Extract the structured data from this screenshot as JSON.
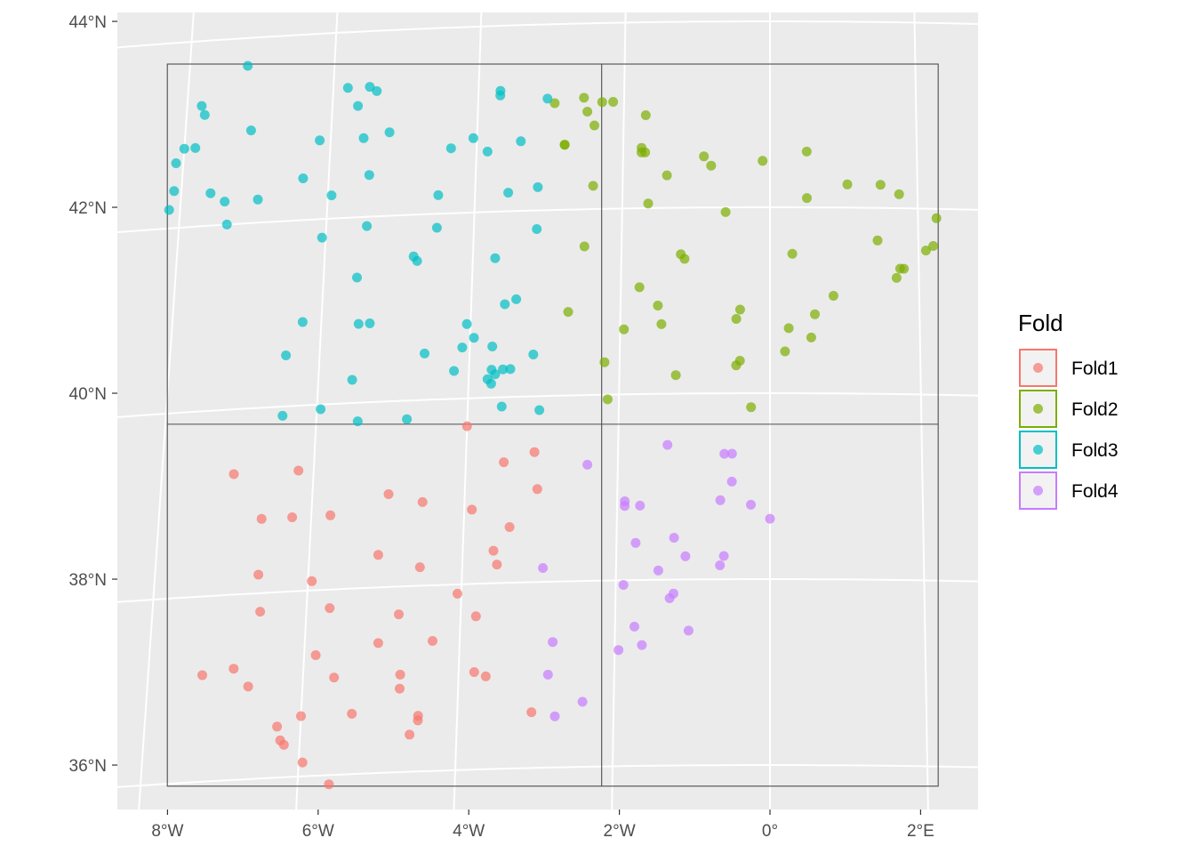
{
  "chart_data": {
    "type": "scatter",
    "title": "",
    "xlabel": "",
    "ylabel": "",
    "xlim": [
      -8.6,
      2.8
    ],
    "ylim": [
      35.5,
      44.2
    ],
    "x_ticks": [
      {
        "value": -8,
        "label": "8°W"
      },
      {
        "value": -6,
        "label": "6°W"
      },
      {
        "value": -4,
        "label": "4°W"
      },
      {
        "value": -2,
        "label": "2°W"
      },
      {
        "value": 0,
        "label": "0°"
      },
      {
        "value": 2,
        "label": "2°E"
      }
    ],
    "y_ticks": [
      {
        "value": 36,
        "label": "36°N"
      },
      {
        "value": 38,
        "label": "38°N"
      },
      {
        "value": 40,
        "label": "40°N"
      },
      {
        "value": 42,
        "label": "42°N"
      },
      {
        "value": 44,
        "label": "44°N"
      }
    ],
    "grid": true,
    "background": "#ebebeb",
    "legend": {
      "title": "Fold",
      "position": "right"
    },
    "fold_boxes_color": "#4d4d4d",
    "series": [
      {
        "name": "Fold1",
        "color": "#F8766D",
        "points": [
          [
            -7.05,
            39.3
          ],
          [
            -6.2,
            39.3
          ],
          [
            -4.0,
            39.7
          ],
          [
            -3.1,
            39.4
          ],
          [
            -3.5,
            39.3
          ],
          [
            -5.0,
            39.0
          ],
          [
            -4.55,
            38.9
          ],
          [
            -3.05,
            39.0
          ],
          [
            -6.65,
            38.8
          ],
          [
            -6.25,
            38.8
          ],
          [
            -5.75,
            38.8
          ],
          [
            -3.9,
            38.8
          ],
          [
            -3.4,
            38.6
          ],
          [
            -5.1,
            38.35
          ],
          [
            -3.6,
            38.35
          ],
          [
            -6.65,
            38.2
          ],
          [
            -5.95,
            38.1
          ],
          [
            -4.55,
            38.2
          ],
          [
            -3.55,
            38.2
          ],
          [
            -6.6,
            37.8
          ],
          [
            -5.7,
            37.8
          ],
          [
            -4.05,
            37.9
          ],
          [
            -4.8,
            37.7
          ],
          [
            -3.8,
            37.65
          ],
          [
            -7.3,
            37.15
          ],
          [
            -6.9,
            37.2
          ],
          [
            -6.7,
            37.0
          ],
          [
            -5.85,
            37.3
          ],
          [
            -5.05,
            37.4
          ],
          [
            -4.35,
            37.4
          ],
          [
            -5.6,
            37.05
          ],
          [
            -4.75,
            37.05
          ],
          [
            -3.8,
            37.05
          ],
          [
            -3.65,
            37.0
          ],
          [
            -4.75,
            36.9
          ],
          [
            -6.0,
            36.65
          ],
          [
            -6.3,
            36.55
          ],
          [
            -5.35,
            36.65
          ],
          [
            -4.5,
            36.6
          ],
          [
            -4.5,
            36.55
          ],
          [
            -3.05,
            36.6
          ],
          [
            -6.25,
            36.4
          ],
          [
            -6.2,
            36.35
          ],
          [
            -4.6,
            36.4
          ],
          [
            -5.95,
            36.15
          ],
          [
            -5.6,
            35.9
          ]
        ]
      },
      {
        "name": "Fold2",
        "color": "#7CAE00",
        "points": [
          [
            -2.95,
            43.15
          ],
          [
            -2.55,
            43.2
          ],
          [
            -2.3,
            43.15
          ],
          [
            -2.15,
            43.15
          ],
          [
            -2.5,
            43.05
          ],
          [
            -2.4,
            42.9
          ],
          [
            -1.7,
            43.0
          ],
          [
            -2.8,
            42.7
          ],
          [
            -2.8,
            42.7
          ],
          [
            -1.75,
            42.65
          ],
          [
            -1.7,
            42.6
          ],
          [
            -1.75,
            42.6
          ],
          [
            -0.9,
            42.55
          ],
          [
            -0.8,
            42.45
          ],
          [
            -0.1,
            42.5
          ],
          [
            0.5,
            42.6
          ],
          [
            -1.4,
            42.35
          ],
          [
            -2.4,
            42.25
          ],
          [
            1.05,
            42.25
          ],
          [
            1.5,
            42.25
          ],
          [
            1.75,
            42.15
          ],
          [
            0.5,
            42.1
          ],
          [
            -1.65,
            42.05
          ],
          [
            -0.6,
            41.95
          ],
          [
            2.25,
            41.9
          ],
          [
            2.2,
            41.6
          ],
          [
            1.45,
            41.65
          ],
          [
            2.1,
            41.55
          ],
          [
            -2.5,
            41.6
          ],
          [
            -1.2,
            41.5
          ],
          [
            -1.15,
            41.45
          ],
          [
            0.3,
            41.5
          ],
          [
            1.75,
            41.35
          ],
          [
            1.8,
            41.35
          ],
          [
            1.7,
            41.25
          ],
          [
            -1.75,
            41.15
          ],
          [
            0.85,
            41.05
          ],
          [
            -2.7,
            40.9
          ],
          [
            -1.5,
            40.95
          ],
          [
            -0.4,
            40.9
          ],
          [
            -1.45,
            40.75
          ],
          [
            -0.45,
            40.8
          ],
          [
            0.6,
            40.85
          ],
          [
            -1.95,
            40.7
          ],
          [
            0.25,
            40.7
          ],
          [
            0.55,
            40.6
          ],
          [
            -2.2,
            40.35
          ],
          [
            -0.4,
            40.35
          ],
          [
            -0.45,
            40.3
          ],
          [
            0.2,
            40.45
          ],
          [
            -1.25,
            40.2
          ],
          [
            -2.15,
            39.95
          ],
          [
            -0.25,
            39.85
          ]
        ]
      },
      {
        "name": "Fold3",
        "color": "#00BFC4",
        "points": [
          [
            -7.2,
            43.7
          ],
          [
            -5.8,
            43.4
          ],
          [
            -5.5,
            43.4
          ],
          [
            -5.4,
            43.35
          ],
          [
            -7.8,
            43.3
          ],
          [
            -7.75,
            43.2
          ],
          [
            -3.7,
            43.3
          ],
          [
            -3.7,
            43.25
          ],
          [
            -5.65,
            43.2
          ],
          [
            -3.05,
            43.2
          ],
          [
            -7.1,
            43.0
          ],
          [
            -5.2,
            42.9
          ],
          [
            -8.0,
            42.85
          ],
          [
            -7.85,
            42.85
          ],
          [
            -6.15,
            42.85
          ],
          [
            -5.55,
            42.85
          ],
          [
            -4.05,
            42.8
          ],
          [
            -4.35,
            42.7
          ],
          [
            -3.85,
            42.65
          ],
          [
            -3.4,
            42.75
          ],
          [
            -8.1,
            42.7
          ],
          [
            -6.35,
            42.45
          ],
          [
            -5.45,
            42.45
          ],
          [
            -8.1,
            42.4
          ],
          [
            -7.6,
            42.35
          ],
          [
            -7.4,
            42.25
          ],
          [
            -6.95,
            42.25
          ],
          [
            -5.95,
            42.25
          ],
          [
            -4.5,
            42.2
          ],
          [
            -3.55,
            42.2
          ],
          [
            -3.15,
            42.25
          ],
          [
            -8.15,
            42.2
          ],
          [
            -7.35,
            42.0
          ],
          [
            -5.45,
            41.9
          ],
          [
            -4.5,
            41.85
          ],
          [
            -6.05,
            41.8
          ],
          [
            -3.15,
            41.8
          ],
          [
            -4.8,
            41.55
          ],
          [
            -4.75,
            41.5
          ],
          [
            -3.7,
            41.5
          ],
          [
            -5.55,
            41.35
          ],
          [
            -3.4,
            41.05
          ],
          [
            -3.55,
            41.0
          ],
          [
            -6.25,
            40.9
          ],
          [
            -5.5,
            40.85
          ],
          [
            -5.35,
            40.85
          ],
          [
            -4.05,
            40.8
          ],
          [
            -3.95,
            40.65
          ],
          [
            -6.45,
            40.55
          ],
          [
            -4.6,
            40.5
          ],
          [
            -4.1,
            40.55
          ],
          [
            -3.7,
            40.55
          ],
          [
            -3.15,
            40.45
          ],
          [
            -4.2,
            40.3
          ],
          [
            -3.7,
            40.3
          ],
          [
            -3.65,
            40.25
          ],
          [
            -3.55,
            40.3
          ],
          [
            -3.45,
            40.3
          ],
          [
            -5.55,
            40.25
          ],
          [
            -3.75,
            40.2
          ],
          [
            -3.7,
            40.15
          ],
          [
            -6.45,
            39.9
          ],
          [
            -5.95,
            39.95
          ],
          [
            -3.55,
            39.9
          ],
          [
            -3.05,
            39.85
          ],
          [
            -5.45,
            39.8
          ],
          [
            -4.8,
            39.8
          ]
        ]
      },
      {
        "name": "Fold4",
        "color": "#C77CFF",
        "points": [
          [
            -1.35,
            39.45
          ],
          [
            -2.4,
            39.25
          ],
          [
            -0.6,
            39.35
          ],
          [
            -0.5,
            39.35
          ],
          [
            -0.5,
            39.05
          ],
          [
            -1.9,
            38.85
          ],
          [
            -1.9,
            38.8
          ],
          [
            -1.7,
            38.8
          ],
          [
            -0.65,
            38.85
          ],
          [
            -0.25,
            38.8
          ],
          [
            0.0,
            38.65
          ],
          [
            -1.75,
            38.4
          ],
          [
            -1.25,
            38.45
          ],
          [
            -1.1,
            38.25
          ],
          [
            -0.6,
            38.25
          ],
          [
            -2.95,
            38.15
          ],
          [
            -0.65,
            38.15
          ],
          [
            -1.45,
            38.1
          ],
          [
            -1.9,
            37.95
          ],
          [
            -1.25,
            37.85
          ],
          [
            -1.3,
            37.8
          ],
          [
            -1.75,
            37.5
          ],
          [
            -1.05,
            37.45
          ],
          [
            -2.8,
            37.35
          ],
          [
            -1.65,
            37.3
          ],
          [
            -1.95,
            37.25
          ],
          [
            -2.85,
            37.0
          ],
          [
            -2.4,
            36.7
          ],
          [
            -2.75,
            36.55
          ]
        ]
      }
    ]
  }
}
